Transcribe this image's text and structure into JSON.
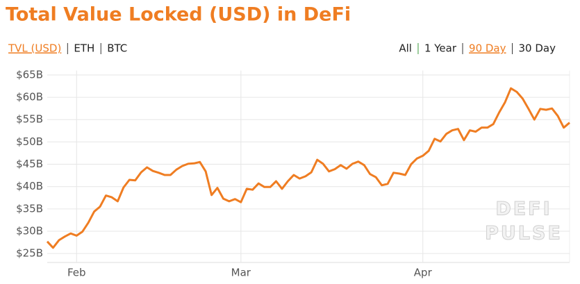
{
  "chart_data": {
    "type": "line",
    "title": "Total Value Locked (USD) in DeFi",
    "categories": [
      null,
      null,
      null,
      null,
      null,
      "Feb",
      null,
      null,
      null,
      null,
      null,
      null,
      null,
      null,
      null,
      null,
      null,
      null,
      null,
      null,
      null,
      null,
      null,
      null,
      null,
      null,
      null,
      null,
      null,
      null,
      null,
      null,
      null,
      "Mar",
      null,
      null,
      null,
      null,
      null,
      null,
      null,
      null,
      null,
      null,
      null,
      null,
      null,
      null,
      null,
      null,
      null,
      null,
      null,
      null,
      null,
      null,
      null,
      null,
      null,
      null,
      null,
      null,
      null,
      null,
      "Apr",
      null,
      null,
      null,
      null,
      null,
      null,
      null,
      null,
      null,
      null,
      null,
      null,
      null,
      null,
      null,
      null,
      null,
      null,
      null,
      null,
      null,
      null,
      null,
      null,
      null
    ],
    "values": [
      27.7,
      26.3,
      28.0,
      28.8,
      29.5,
      29.0,
      29.9,
      31.9,
      34.4,
      35.5,
      38.0,
      37.6,
      36.7,
      39.8,
      41.5,
      41.4,
      43.2,
      44.3,
      43.5,
      43.1,
      42.6,
      42.6,
      43.8,
      44.6,
      45.1,
      45.2,
      45.5,
      43.4,
      38.1,
      39.7,
      37.3,
      36.7,
      37.2,
      36.5,
      39.5,
      39.3,
      40.7,
      39.9,
      39.9,
      41.2,
      39.5,
      41.2,
      42.6,
      41.8,
      42.3,
      43.2,
      46.0,
      45.1,
      43.4,
      43.9,
      44.8,
      44.0,
      45.1,
      45.6,
      44.8,
      42.8,
      42.1,
      40.3,
      40.6,
      43.1,
      42.9,
      42.6,
      45.0,
      46.3,
      46.9,
      48.0,
      50.7,
      50.1,
      51.8,
      52.6,
      52.9,
      50.4,
      52.6,
      52.3,
      53.2,
      53.2,
      54.0,
      56.6,
      58.9,
      62.0,
      61.2,
      59.7,
      57.4,
      55.0,
      57.4,
      57.2,
      57.5,
      55.8,
      53.2,
      54.3
    ],
    "color": "#ef7d22",
    "ylim": [
      23,
      66
    ],
    "yticks": [
      {
        "value": 25,
        "label": "$25B"
      },
      {
        "value": 30,
        "label": "$30B"
      },
      {
        "value": 35,
        "label": "$35B"
      },
      {
        "value": 40,
        "label": "$40B"
      },
      {
        "value": 45,
        "label": "$45B"
      },
      {
        "value": 50,
        "label": "$50B"
      },
      {
        "value": 55,
        "label": "$55B"
      },
      {
        "value": 60,
        "label": "$60B"
      },
      {
        "value": 65,
        "label": "$65B"
      }
    ],
    "grid": true
  },
  "controls": {
    "metrics": [
      {
        "label": "TVL (USD)",
        "active": true
      },
      {
        "label": "ETH",
        "active": false
      },
      {
        "label": "BTC",
        "active": false
      }
    ],
    "ranges": [
      {
        "label": "All",
        "active": false
      },
      {
        "label": "1 Year",
        "active": false
      },
      {
        "label": "90 Day",
        "active": true
      },
      {
        "label": "30 Day",
        "active": false
      }
    ]
  },
  "watermark": [
    "DEFI",
    "PULSE"
  ]
}
